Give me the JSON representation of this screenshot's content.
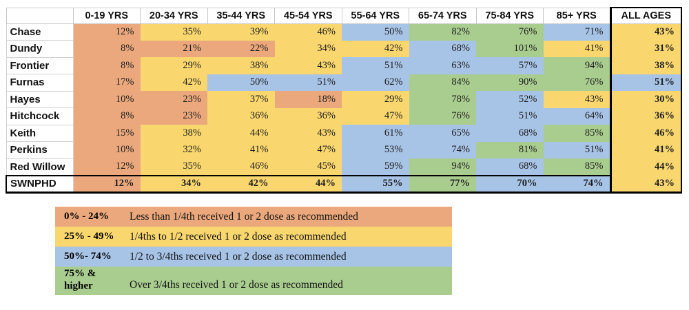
{
  "chart_data": {
    "type": "heatmap",
    "title": "",
    "corner_label": "",
    "columns": [
      "0-19 YRS",
      "20-34 YRS",
      "35-44 YRS",
      "45-54 YRS",
      "55-64 YRS",
      "65-74 YRS",
      "75-84 YRS",
      "85+ YRS",
      "ALL AGES"
    ],
    "rows": [
      {
        "label": "Chase",
        "values": [
          12,
          35,
          39,
          46,
          50,
          82,
          76,
          71,
          43
        ],
        "is_total": false
      },
      {
        "label": "Dundy",
        "values": [
          8,
          21,
          22,
          34,
          42,
          68,
          101,
          41,
          31
        ],
        "is_total": false
      },
      {
        "label": "Frontier",
        "values": [
          8,
          29,
          38,
          43,
          51,
          63,
          57,
          94,
          38
        ],
        "is_total": false
      },
      {
        "label": "Furnas",
        "values": [
          17,
          42,
          50,
          51,
          62,
          84,
          90,
          76,
          51
        ],
        "is_total": false
      },
      {
        "label": "Hayes",
        "values": [
          10,
          23,
          37,
          18,
          29,
          78,
          52,
          43,
          30
        ],
        "is_total": false
      },
      {
        "label": "Hitchcock",
        "values": [
          8,
          23,
          36,
          36,
          47,
          76,
          51,
          64,
          36
        ],
        "is_total": false
      },
      {
        "label": "Keith",
        "values": [
          15,
          38,
          44,
          43,
          61,
          65,
          68,
          85,
          46
        ],
        "is_total": false
      },
      {
        "label": "Perkins",
        "values": [
          10,
          32,
          41,
          47,
          53,
          74,
          81,
          51,
          41
        ],
        "is_total": false
      },
      {
        "label": "Red Willow",
        "values": [
          12,
          35,
          46,
          45,
          59,
          94,
          68,
          85,
          44
        ],
        "is_total": false
      },
      {
        "label": "SWNPHD",
        "values": [
          12,
          34,
          42,
          44,
          55,
          77,
          70,
          74,
          43
        ],
        "is_total": true
      }
    ],
    "value_suffix": "%",
    "color_scale": [
      {
        "max": 24,
        "color": "#EAA87C",
        "name": "orange"
      },
      {
        "max": 49,
        "color": "#F9D76E",
        "name": "yellow"
      },
      {
        "max": 74,
        "color": "#A7C3E6",
        "name": "blue"
      },
      {
        "max": null,
        "color": "#A9CD8F",
        "name": "green"
      }
    ],
    "legend": [
      {
        "range": "0% - 24%",
        "description": "Less than 1/4th received 1 or 2 dose as recommended",
        "color": "#EAA87C"
      },
      {
        "range": "25% - 49%",
        "description": "1/4ths to 1/2 received 1 or 2 dose as recommended",
        "color": "#F9D76E"
      },
      {
        "range": "50%- 74%",
        "description": "1/2 to 3/4ths received 1 or 2 dose as recommended",
        "color": "#A7C3E6"
      },
      {
        "range": "75% &\nhigher",
        "description": "Over 3/4ths received 1 or 2 dose as recommended",
        "color": "#A9CD8F"
      }
    ]
  }
}
